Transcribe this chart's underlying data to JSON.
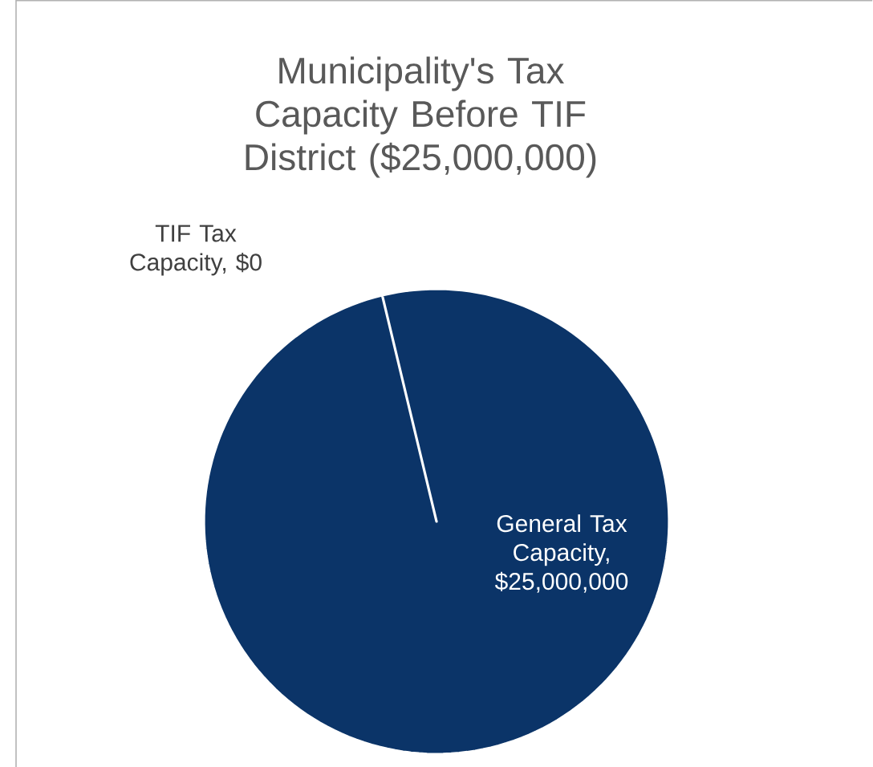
{
  "chart_data": {
    "type": "pie",
    "title": "Municipality's Tax Capacity Before TIF District ($25,000,000)",
    "categories": [
      "TIF Tax Capacity, $0",
      "General Tax Capacity, $25,000,000"
    ],
    "values": [
      0,
      25000000
    ],
    "colors": [
      "#0b3468",
      "#0b3468"
    ]
  }
}
